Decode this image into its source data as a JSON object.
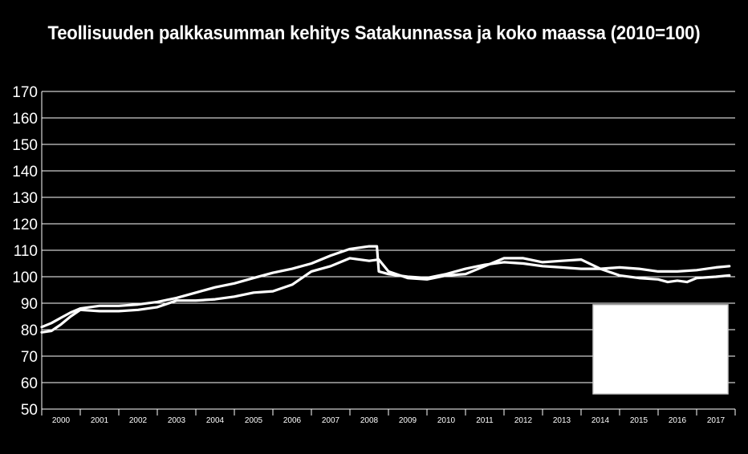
{
  "chart_data": {
    "type": "line",
    "title": "Teollisuuden palkkasumman kehitys Satakunnassa ja koko maassa (2010=100)",
    "xlabel": "",
    "ylabel": "",
    "ylim": [
      50,
      170
    ],
    "yticks": [
      "50",
      "60",
      "70",
      "80",
      "90",
      "100",
      "110",
      "120",
      "130",
      "140",
      "150",
      "160",
      "170"
    ],
    "categories": [
      "2000",
      "2001",
      "2002",
      "2003",
      "2004",
      "2005",
      "2006",
      "2007",
      "2008",
      "2009",
      "2010",
      "2011",
      "2012",
      "2013",
      "2014",
      "2015",
      "2016",
      "2017"
    ],
    "x_range": [
      2000.0,
      2018.0
    ],
    "grid": true,
    "legend": "hidden",
    "line_color": "#ffffff",
    "series": [
      {
        "x": [
          2000.0,
          2000.25,
          2000.5,
          2000.75,
          2001.0,
          2001.5,
          2002.0,
          2002.5,
          2003.0,
          2003.5,
          2004.0,
          2004.5,
          2005.0,
          2005.5,
          2006.0,
          2006.5,
          2007.0,
          2007.5,
          2008.0,
          2008.5,
          2008.7,
          2008.75,
          2009.0,
          2009.5,
          2010.0,
          2010.5,
          2011.0,
          2011.5,
          2012.0,
          2012.5,
          2013.0,
          2013.5,
          2014.0,
          2014.5,
          2015.0,
          2015.5,
          2016.0,
          2016.5,
          2017.0,
          2017.5,
          2017.85
        ],
        "values": [
          81,
          82.5,
          84.5,
          86.5,
          88,
          89,
          89,
          89.5,
          90.5,
          92,
          94,
          96,
          97.5,
          99.5,
          101.5,
          103,
          105,
          108,
          110.5,
          111.5,
          111.5,
          102,
          101,
          100,
          99.5,
          101,
          103,
          104.5,
          105.5,
          105,
          104,
          103.5,
          103,
          103,
          103.5,
          103,
          102,
          102,
          102.5,
          103.5,
          104
        ]
      },
      {
        "x": [
          2000.0,
          2000.25,
          2000.5,
          2000.75,
          2001.0,
          2001.5,
          2002.0,
          2002.5,
          2003.0,
          2003.5,
          2004.0,
          2004.5,
          2005.0,
          2005.5,
          2006.0,
          2006.5,
          2007.0,
          2007.5,
          2008.0,
          2008.5,
          2008.75,
          2009.0,
          2009.5,
          2010.0,
          2010.5,
          2011.0,
          2011.5,
          2012.0,
          2012.5,
          2013.0,
          2013.5,
          2014.0,
          2014.5,
          2015.0,
          2015.5,
          2016.0,
          2016.25,
          2016.5,
          2016.75,
          2017.0,
          2017.5,
          2017.85
        ],
        "values": [
          79,
          79.5,
          82,
          85,
          87.5,
          87,
          87,
          87.5,
          88.5,
          91,
          91,
          91.5,
          92.5,
          94,
          94.5,
          97,
          102,
          104,
          107,
          106,
          106.5,
          102,
          99.5,
          99,
          100.5,
          101,
          104,
          107,
          107,
          105.5,
          106,
          106.5,
          103,
          100.5,
          99.5,
          99,
          98,
          98.5,
          98,
          99.5,
          100,
          100.5
        ]
      }
    ]
  }
}
